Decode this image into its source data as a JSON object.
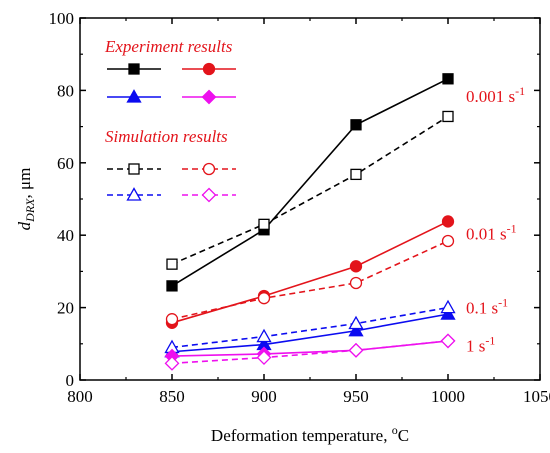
{
  "chart_data": {
    "type": "line",
    "xlabel": {
      "text": "Deformation temperature, ",
      "sup": "o",
      "unit": "C"
    },
    "ylabel": {
      "main": "d",
      "sub": "DRX",
      "rest": ", μm"
    },
    "xlim": [
      800,
      1050
    ],
    "ylim": [
      0,
      100
    ],
    "xticks": [
      800,
      850,
      900,
      950,
      1000,
      1050
    ],
    "yticks": [
      0,
      20,
      40,
      60,
      80,
      100
    ],
    "grid": false,
    "x": [
      850,
      900,
      950,
      1000
    ],
    "legend": {
      "placement": "top-left",
      "experiment_title": "Experiment results",
      "simulation_title": "Simulation results"
    },
    "colors": {
      "black": "#000000",
      "red": "#e3141b",
      "blue": "#0b0bf0",
      "magenta": "#ee10ee"
    },
    "series": [
      {
        "group": "experiment",
        "color": "black",
        "marker": "square",
        "filled": true,
        "dashed": false,
        "values": [
          26,
          41.5,
          70.5,
          83.2
        ]
      },
      {
        "group": "simulation",
        "color": "black",
        "marker": "square",
        "filled": false,
        "dashed": true,
        "values": [
          32,
          43,
          56.8,
          72.8
        ]
      },
      {
        "group": "experiment",
        "color": "red",
        "marker": "circle",
        "filled": true,
        "dashed": false,
        "values": [
          15.8,
          23.2,
          31.4,
          43.8
        ]
      },
      {
        "group": "simulation",
        "color": "red",
        "marker": "circle",
        "filled": false,
        "dashed": true,
        "values": [
          16.8,
          22.6,
          26.8,
          38.4
        ]
      },
      {
        "group": "experiment",
        "color": "blue",
        "marker": "triangle",
        "filled": true,
        "dashed": false,
        "values": [
          7.8,
          9.8,
          13.6,
          18.2
        ]
      },
      {
        "group": "simulation",
        "color": "blue",
        "marker": "triangle",
        "filled": false,
        "dashed": true,
        "values": [
          9,
          12,
          15.6,
          20
        ]
      },
      {
        "group": "experiment",
        "color": "magenta",
        "marker": "diamond",
        "filled": true,
        "dashed": false,
        "values": [
          6.6,
          7.2,
          8.2,
          10.8
        ]
      },
      {
        "group": "simulation",
        "color": "magenta",
        "marker": "diamond",
        "filled": false,
        "dashed": true,
        "values": [
          4.6,
          6.2,
          8.2,
          10.8
        ]
      }
    ],
    "annotations": [
      {
        "text": "0.001 s",
        "sup": "-1",
        "color": "red",
        "at_x": 1000,
        "at_y": 78.5
      },
      {
        "text": "0.01 s",
        "sup": "-1",
        "color": "red",
        "at_x": 1000,
        "at_y": 40.5
      },
      {
        "text": "0.1 s",
        "sup": "-1",
        "color": "red",
        "at_x": 1000,
        "at_y": 20
      },
      {
        "text": "1 s",
        "sup": "-1",
        "color": "red",
        "at_x": 1000,
        "at_y": 9.5
      }
    ]
  }
}
